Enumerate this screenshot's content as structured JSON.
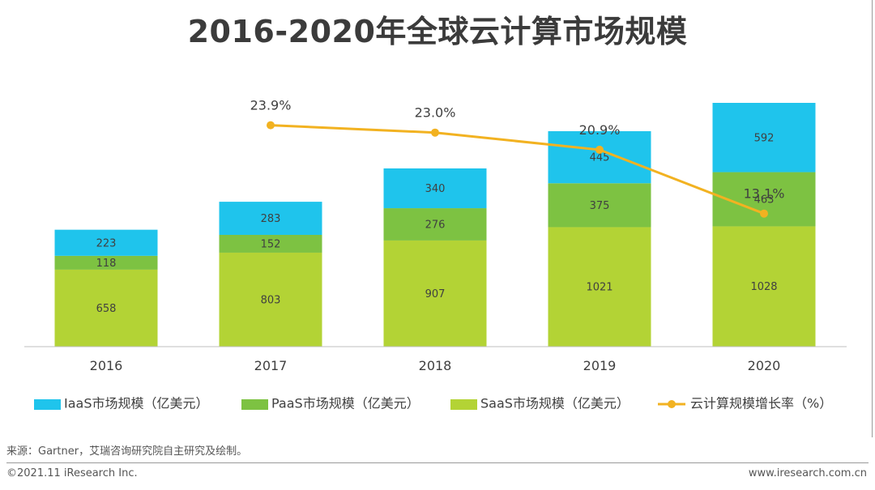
{
  "page": {
    "title": "2016-2020年全球云计算市场规模",
    "source": "来源：Gartner，艾瑞咨询研究院自主研究及绘制。",
    "copyright": "©2021.11 iResearch Inc.",
    "website": "www.iresearch.com.cn"
  },
  "colors": {
    "iaas": "#1fc4ec",
    "paas": "#7dc242",
    "saas": "#b3d335",
    "growth": "#f2b221",
    "axis": "#bfbfbf"
  },
  "chart_data": {
    "type": "bar",
    "stacked": true,
    "title": "2016-2020年全球云计算市场规模",
    "categories": [
      "2016",
      "2017",
      "2018",
      "2019",
      "2020"
    ],
    "series": [
      {
        "key": "saas",
        "name": "SaaS市场规模（亿美元）",
        "values": [
          658,
          803,
          907,
          1021,
          1028
        ]
      },
      {
        "key": "paas",
        "name": "PaaS市场规模（亿美元）",
        "values": [
          118,
          152,
          276,
          375,
          463
        ]
      },
      {
        "key": "iaas",
        "name": "IaaS市场规模（亿美元）",
        "values": [
          223,
          283,
          340,
          445,
          592
        ]
      }
    ],
    "line": {
      "name": "云计算规模增长率（%）",
      "values": [
        null,
        23.9,
        23.0,
        20.9,
        13.1
      ],
      "labels": [
        "",
        "23.9%",
        "23.0%",
        "20.9%",
        "13.1%"
      ]
    },
    "ylim": [
      0,
      2200
    ],
    "line_ylim": [
      0,
      30
    ],
    "legend_order": [
      "iaas",
      "paas",
      "saas",
      "growth"
    ],
    "legend_position": "bottom",
    "grid": false
  }
}
